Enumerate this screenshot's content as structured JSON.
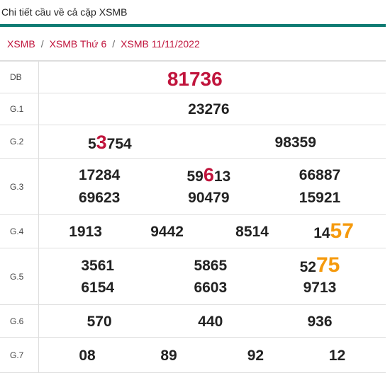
{
  "header": {
    "title": "Chi tiết cầu về cả cặp XSMB"
  },
  "breadcrumb": [
    "XSMB",
    "XSMB Thứ 6",
    "XSMB 11/11/2022"
  ],
  "prizes": [
    {
      "label": "DB",
      "nums": [
        "81736"
      ]
    },
    {
      "label": "G.1",
      "nums": [
        "23276"
      ]
    },
    {
      "label": "G.2",
      "nums": [
        {
          "pre": "5",
          "hl": "3",
          "post": "754"
        },
        "98359"
      ]
    },
    {
      "label": "G.3",
      "nums": [
        "17284",
        {
          "pre": "59",
          "hl": "6",
          "post": "13"
        },
        "66887",
        "69623",
        "90479",
        "15921"
      ]
    },
    {
      "label": "G.4",
      "nums": [
        "1913",
        "9442",
        "8514",
        {
          "pre": "14",
          "hl": "57",
          "post": ""
        }
      ]
    },
    {
      "label": "G.5",
      "nums": [
        "3561",
        "5865",
        {
          "pre": "52",
          "hl": "75",
          "post": ""
        },
        "6154",
        "6603",
        "9713"
      ]
    },
    {
      "label": "G.6",
      "nums": [
        "570",
        "440",
        "936"
      ]
    },
    {
      "label": "G.7",
      "nums": [
        "08",
        "89",
        "92",
        "12"
      ]
    }
  ],
  "colors": {
    "accent": "#0f7b73",
    "highlight_red": "#c0143c",
    "highlight_orange": "#f59a0d"
  }
}
